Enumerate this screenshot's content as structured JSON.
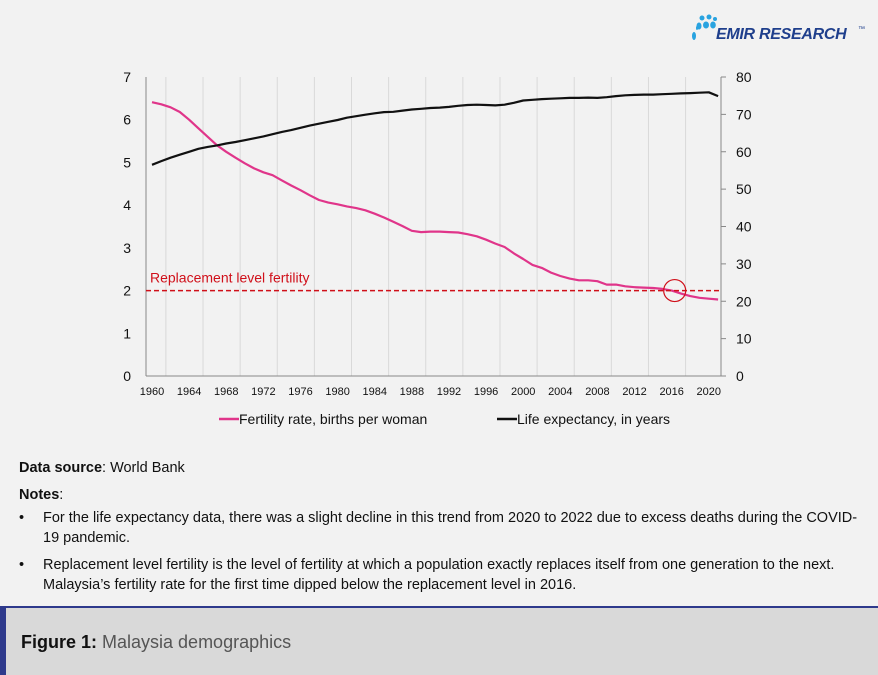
{
  "logo": {
    "text": "EMIR RESEARCH",
    "tm": "™"
  },
  "chart_data": {
    "type": "line",
    "x": [
      1960,
      1961,
      1962,
      1963,
      1964,
      1965,
      1966,
      1967,
      1968,
      1969,
      1970,
      1971,
      1972,
      1973,
      1974,
      1975,
      1976,
      1977,
      1978,
      1979,
      1980,
      1981,
      1982,
      1983,
      1984,
      1985,
      1986,
      1987,
      1988,
      1989,
      1990,
      1991,
      1992,
      1993,
      1994,
      1995,
      1996,
      1997,
      1998,
      1999,
      2000,
      2001,
      2002,
      2003,
      2004,
      2005,
      2006,
      2007,
      2008,
      2009,
      2010,
      2011,
      2012,
      2013,
      2014,
      2015,
      2016,
      2017,
      2018,
      2019,
      2020,
      2021
    ],
    "x_tick_labels": [
      "1960",
      "1964",
      "1968",
      "1972",
      "1976",
      "1980",
      "1984",
      "1988",
      "1992",
      "1996",
      "2000",
      "2004",
      "2008",
      "2012",
      "2016",
      "2020"
    ],
    "y_left": {
      "ylim": [
        0,
        7
      ],
      "ticks": [
        "0",
        "1",
        "2",
        "3",
        "4",
        "5",
        "6",
        "7"
      ]
    },
    "y_right": {
      "ylim": [
        0,
        80
      ],
      "ticks": [
        "0",
        "10",
        "20",
        "30",
        "40",
        "50",
        "60",
        "70",
        "80"
      ]
    },
    "grid": "vertical",
    "legend": "bottom",
    "series": [
      {
        "name": "Fertility rate, births per woman",
        "axis": "left",
        "color": "#e0358a",
        "values": [
          6.41,
          6.36,
          6.29,
          6.18,
          6.0,
          5.8,
          5.6,
          5.4,
          5.25,
          5.11,
          4.98,
          4.86,
          4.77,
          4.7,
          4.58,
          4.46,
          4.35,
          4.23,
          4.12,
          4.06,
          4.02,
          3.97,
          3.93,
          3.88,
          3.8,
          3.71,
          3.61,
          3.51,
          3.4,
          3.37,
          3.38,
          3.38,
          3.37,
          3.36,
          3.32,
          3.27,
          3.19,
          3.1,
          3.02,
          2.87,
          2.74,
          2.6,
          2.53,
          2.42,
          2.34,
          2.28,
          2.24,
          2.24,
          2.22,
          2.14,
          2.14,
          2.1,
          2.08,
          2.07,
          2.06,
          2.04,
          2.0,
          1.93,
          1.87,
          1.83,
          1.81,
          1.79
        ]
      },
      {
        "name": "Life expectancy, in years",
        "axis": "right",
        "color": "#111111",
        "values": [
          56.5,
          57.5,
          58.4,
          59.2,
          60.0,
          60.8,
          61.3,
          61.7,
          62.2,
          62.6,
          63.1,
          63.6,
          64.1,
          64.7,
          65.3,
          65.8,
          66.4,
          67.0,
          67.5,
          68.0,
          68.5,
          69.1,
          69.5,
          69.9,
          70.3,
          70.6,
          70.7,
          71.0,
          71.3,
          71.5,
          71.7,
          71.8,
          72.0,
          72.3,
          72.5,
          72.6,
          72.5,
          72.4,
          72.6,
          73.1,
          73.7,
          73.9,
          74.1,
          74.2,
          74.3,
          74.4,
          74.4,
          74.5,
          74.4,
          74.6,
          74.9,
          75.1,
          75.2,
          75.3,
          75.3,
          75.4,
          75.5,
          75.6,
          75.7,
          75.8,
          75.9,
          74.9
        ]
      }
    ],
    "annotations": [
      {
        "text": "Replacement level fertility",
        "y": 2,
        "axis": "left",
        "style": "dashed",
        "color": "#d0101a"
      },
      {
        "type": "circle",
        "x": 2016,
        "y": 2,
        "color": "#d0101a"
      }
    ]
  },
  "notes": {
    "source_label": "Data source",
    "source_value": ": World Bank",
    "notes_label": "Notes",
    "notes_colon": ":",
    "items": [
      "For the life expectancy data, there was a slight decline in this trend from 2020 to 2022 due to excess deaths during the COVID-19 pandemic.",
      "Replacement level fertility is the level of fertility at which a population exactly replaces itself from one generation to the next. Malaysia’s fertility rate for the first time dipped below the replacement level in 2016."
    ]
  },
  "caption": {
    "label": "Figure 1:",
    "title": " Malaysia demographics"
  }
}
